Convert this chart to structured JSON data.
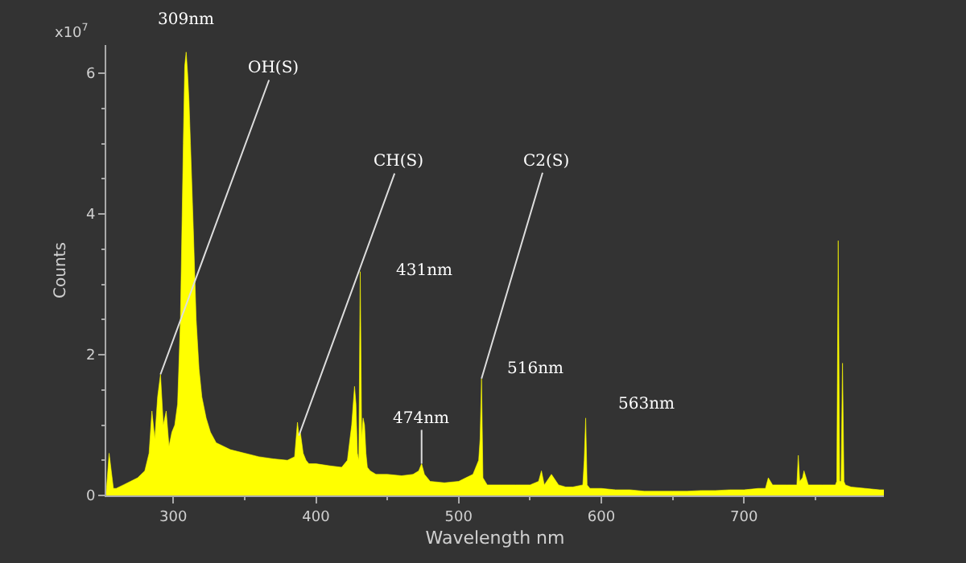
{
  "chart_data": {
    "type": "area",
    "xlabel": "Wavelength nm",
    "ylabel": "Counts",
    "x": [
      253,
      255,
      258,
      260,
      265,
      270,
      275,
      280,
      283,
      285,
      287,
      289,
      291,
      293,
      295,
      297,
      299,
      301,
      303,
      305,
      307,
      308,
      309,
      310,
      311,
      312,
      314,
      316,
      318,
      320,
      323,
      326,
      330,
      335,
      340,
      350,
      360,
      370,
      380,
      385,
      387,
      388,
      389,
      391,
      393,
      395,
      400,
      410,
      418,
      422,
      425,
      427,
      428,
      429,
      430,
      431,
      432,
      433,
      434,
      435,
      436,
      438,
      442,
      450,
      460,
      468,
      472,
      474,
      476,
      480,
      490,
      500,
      505,
      510,
      514,
      515,
      516,
      517,
      520,
      530,
      540,
      550,
      556,
      558,
      560,
      565,
      570,
      575,
      580,
      587,
      588,
      589,
      590,
      592,
      600,
      610,
      620,
      630,
      640,
      650,
      660,
      670,
      680,
      690,
      700,
      710,
      715,
      717,
      720,
      730,
      737,
      738,
      739,
      741,
      742,
      745,
      755,
      764,
      765,
      766,
      767,
      768,
      769,
      770,
      771,
      775,
      785,
      795,
      798
    ],
    "series": [
      {
        "color": "#ffff00",
        "values": [
          0.05,
          0.6,
          0.1,
          0.1,
          0.15,
          0.2,
          0.25,
          0.35,
          0.6,
          1.2,
          0.8,
          1.4,
          1.72,
          1.0,
          1.2,
          0.7,
          0.9,
          1.0,
          1.3,
          2.5,
          5.0,
          6.1,
          6.3,
          6.0,
          5.6,
          5.0,
          3.8,
          2.5,
          1.8,
          1.4,
          1.1,
          0.9,
          0.75,
          0.7,
          0.65,
          0.6,
          0.55,
          0.52,
          0.5,
          0.55,
          1.04,
          0.85,
          0.9,
          0.6,
          0.5,
          0.45,
          0.45,
          0.42,
          0.4,
          0.5,
          1.0,
          1.55,
          1.3,
          0.6,
          0.5,
          3.18,
          0.8,
          1.1,
          1.0,
          0.6,
          0.4,
          0.35,
          0.3,
          0.3,
          0.28,
          0.3,
          0.35,
          0.45,
          0.3,
          0.2,
          0.18,
          0.2,
          0.25,
          0.3,
          0.5,
          0.8,
          1.66,
          0.25,
          0.15,
          0.15,
          0.15,
          0.15,
          0.2,
          0.35,
          0.15,
          0.3,
          0.15,
          0.12,
          0.12,
          0.15,
          0.5,
          1.1,
          0.15,
          0.1,
          0.1,
          0.08,
          0.08,
          0.06,
          0.06,
          0.06,
          0.06,
          0.07,
          0.07,
          0.08,
          0.08,
          0.1,
          0.1,
          0.25,
          0.15,
          0.15,
          0.15,
          0.57,
          0.2,
          0.25,
          0.35,
          0.15,
          0.15,
          0.15,
          0.2,
          3.62,
          0.2,
          0.2,
          1.88,
          0.2,
          0.15,
          0.12,
          0.1,
          0.08,
          0.08
        ]
      }
    ],
    "xlim": [
      253,
      798
    ],
    "xticks": [
      300,
      400,
      500,
      600,
      700
    ],
    "ylim": [
      0,
      6.4
    ],
    "yticks": [
      0,
      2,
      4,
      6
    ],
    "grid": false,
    "annotations": [
      "x10$^{7}$",
      {
        "text": "309nm",
        "x": 309,
        "y": 6.3
      },
      {
        "text": "OH(S)",
        "x": 291,
        "y": 1.72
      },
      {
        "text": "CH(S)",
        "x": 388,
        "y": 0.85
      },
      {
        "text": "431nm",
        "x": 431,
        "y": 3.18
      },
      {
        "text": "474nm",
        "x": 474,
        "y": 0.45
      },
      {
        "text": "C2(S)",
        "x": 516,
        "y": 1.66
      },
      {
        "text": "516nm",
        "x": 516,
        "y": 1.66
      },
      {
        "text": "563nm",
        "x": 589,
        "y": 1.1
      }
    ]
  }
}
